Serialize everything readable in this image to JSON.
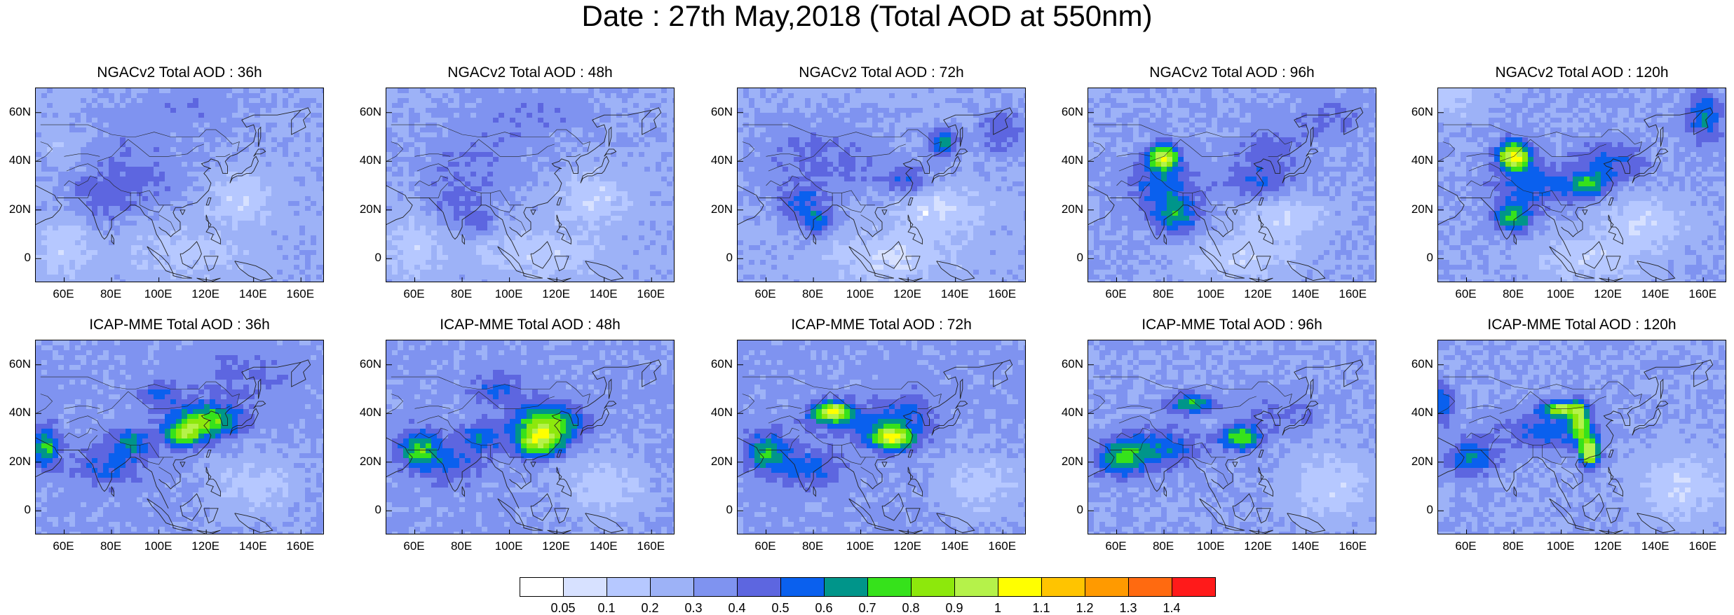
{
  "title": "Date : 27th May,2018 (Total AOD at 550nm)",
  "axes": {
    "lat_labels": [
      "60N",
      "40N",
      "20N",
      "0"
    ],
    "lat_values": [
      60,
      40,
      20,
      0
    ],
    "lon_labels": [
      "60E",
      "80E",
      "100E",
      "120E",
      "140E",
      "160E"
    ],
    "lon_values": [
      60,
      80,
      100,
      120,
      140,
      160
    ],
    "lon_range": [
      48,
      170
    ],
    "lat_range": [
      -10,
      70
    ]
  },
  "panels": [
    {
      "title": "NGACv2 Total AOD : 36h",
      "model": "NGACv2",
      "lead": "36h"
    },
    {
      "title": "NGACv2 Total AOD : 48h",
      "model": "NGACv2",
      "lead": "48h"
    },
    {
      "title": "NGACv2 Total AOD : 72h",
      "model": "NGACv2",
      "lead": "72h"
    },
    {
      "title": "NGACv2 Total AOD : 96h",
      "model": "NGACv2",
      "lead": "96h"
    },
    {
      "title": "NGACv2 Total AOD : 120h",
      "model": "NGACv2",
      "lead": "120h"
    },
    {
      "title": "ICAP-MME Total AOD : 36h",
      "model": "ICAP-MME",
      "lead": "36h"
    },
    {
      "title": "ICAP-MME Total AOD : 48h",
      "model": "ICAP-MME",
      "lead": "48h"
    },
    {
      "title": "ICAP-MME Total AOD : 72h",
      "model": "ICAP-MME",
      "lead": "72h"
    },
    {
      "title": "ICAP-MME Total AOD : 96h",
      "model": "ICAP-MME",
      "lead": "96h"
    },
    {
      "title": "ICAP-MME Total AOD : 120h",
      "model": "ICAP-MME",
      "lead": "120h"
    }
  ],
  "colorbar": {
    "labels": [
      "0.05",
      "0.1",
      "0.2",
      "0.3",
      "0.4",
      "0.5",
      "0.6",
      "0.7",
      "0.8",
      "0.9",
      "1",
      "1.1",
      "1.2",
      "1.3",
      "1.4"
    ],
    "colors": [
      "#ffffff",
      "#d7e1ff",
      "#b6c8ff",
      "#9db2f7",
      "#7f93f0",
      "#5d66e0",
      "#0a60ee",
      "#00958a",
      "#36e21b",
      "#8de80c",
      "#b5f24a",
      "#ffff00",
      "#ffc400",
      "#ff9a00",
      "#ff6a10",
      "#ff1a1a"
    ]
  }
}
